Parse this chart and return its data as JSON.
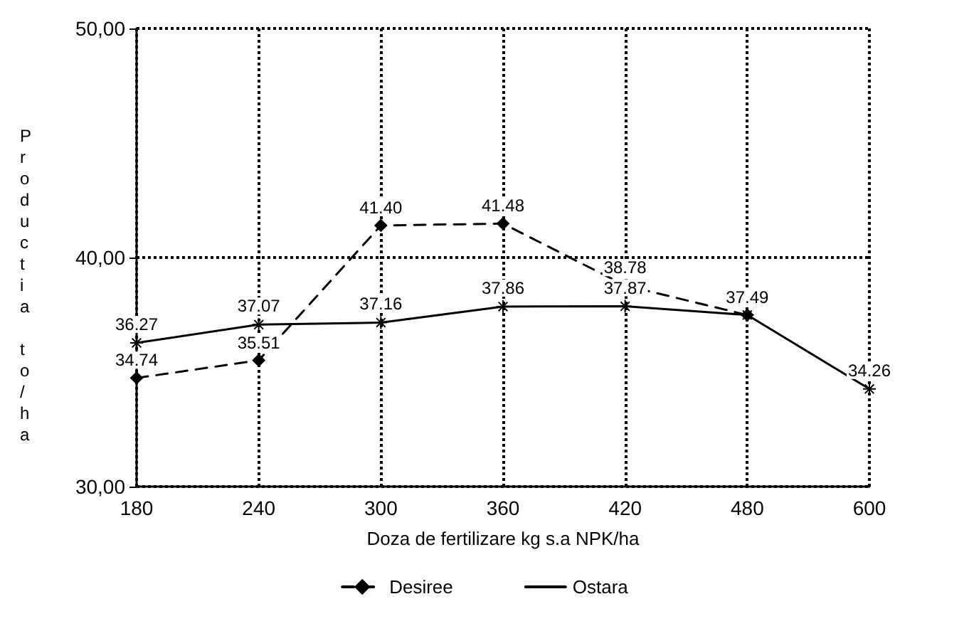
{
  "chart_data": {
    "type": "line",
    "xlabel": "Doza de fertilizare kg s.a NPK/ha",
    "ylabel": "Productia to/ha",
    "categories": [
      "180",
      "240",
      "300",
      "360",
      "420",
      "480",
      "600"
    ],
    "series": [
      {
        "name": "Desiree",
        "color": "#000000",
        "marker": "diamond",
        "line_style": "dashed",
        "values": [
          34.74,
          35.51,
          41.4,
          41.48,
          38.78,
          37.49,
          null
        ],
        "value_labels": [
          "34.74",
          "35.51",
          "41.40",
          "41.48",
          "38.78",
          "37.49",
          null
        ]
      },
      {
        "name": "Ostara",
        "color": "#000000",
        "marker": "cross",
        "line_style": "solid",
        "values": [
          36.27,
          37.07,
          37.16,
          37.86,
          37.87,
          37.49,
          34.26
        ],
        "value_labels": [
          "36.27",
          "37.07",
          "37.16",
          "37.86",
          "37.87",
          null,
          "34.26"
        ]
      }
    ],
    "ylim": [
      30,
      50
    ],
    "yticks": [
      {
        "value": 30,
        "label": "30,00"
      },
      {
        "value": 40,
        "label": "40,00"
      },
      {
        "value": 50,
        "label": "50,00"
      }
    ],
    "grid": true,
    "legend": "bottom"
  }
}
